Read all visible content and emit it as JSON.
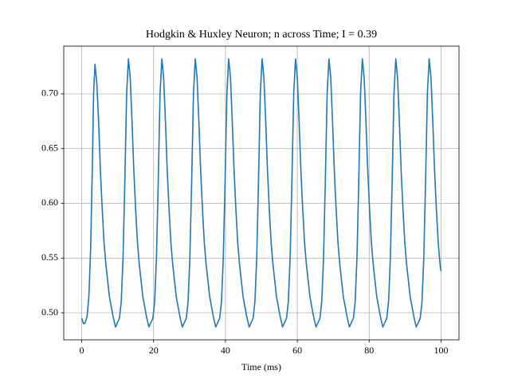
{
  "chart_data": {
    "type": "line",
    "title": "Hodgkin & Huxley Neuron; n across Time; I = 0.39",
    "xlabel": "Time (ms)",
    "xlim": [
      -5,
      105
    ],
    "xticks": [
      0,
      20,
      40,
      60,
      80,
      100
    ],
    "ylim": [
      0.4753,
      0.7436
    ],
    "yticks": [
      0.5,
      0.55,
      0.6,
      0.65,
      0.7
    ],
    "grid": true,
    "series": [
      {
        "color": "#1f77b4",
        "x": [
          0,
          0.5,
          1,
          1.5,
          2,
          2.5,
          3,
          3.3,
          3.7,
          4.2,
          4.7,
          5.2,
          5.7,
          6.2,
          6.7,
          7.7,
          8.7,
          9.4,
          10.5,
          11,
          11.5,
          12,
          12.5,
          13,
          13.5,
          14,
          14.5,
          15,
          15.5,
          16,
          17,
          18,
          18.7,
          19.8,
          20.3,
          20.8,
          21.3,
          21.8,
          22.3,
          22.8,
          23.3,
          23.8,
          24.3,
          24.8,
          25.3,
          26.3,
          27.3,
          28,
          29.1,
          29.6,
          30.1,
          30.6,
          31.1,
          31.6,
          32.1,
          32.6,
          33.1,
          33.6,
          34.1,
          34.6,
          35.6,
          36.6,
          37.3,
          38.4,
          38.9,
          39.4,
          39.9,
          40.4,
          40.9,
          41.4,
          41.9,
          42.4,
          42.9,
          43.4,
          43.9,
          44.9,
          45.9,
          46.6,
          47.7,
          48.2,
          48.7,
          49.2,
          49.7,
          50.2,
          50.7,
          51.2,
          51.7,
          52.2,
          52.7,
          53.2,
          54.2,
          55.2,
          55.9,
          57,
          57.5,
          58,
          58.5,
          59,
          59.5,
          60,
          60.5,
          61,
          61.5,
          62,
          62.5,
          63.5,
          64.5,
          65.2,
          66.3,
          66.8,
          67.3,
          67.8,
          68.3,
          68.8,
          69.3,
          69.8,
          70.3,
          70.8,
          71.3,
          71.8,
          72.8,
          73.8,
          74.5,
          75.6,
          76.1,
          76.6,
          77.1,
          77.6,
          78.1,
          78.6,
          79.1,
          79.6,
          80.1,
          80.6,
          81.1,
          82.1,
          83.1,
          83.8,
          84.9,
          85.4,
          85.9,
          86.4,
          86.9,
          87.4,
          87.9,
          88.4,
          88.9,
          89.4,
          89.9,
          90.4,
          91.4,
          92.4,
          93.1,
          94.2,
          94.7,
          95.2,
          95.7,
          96.2,
          96.7,
          97.2,
          97.7,
          98.2,
          98.7,
          99.2,
          99.7,
          100
        ],
        "values": [
          0.495,
          0.49,
          0.491,
          0.497,
          0.515,
          0.56,
          0.64,
          0.7,
          0.727,
          0.71,
          0.675,
          0.63,
          0.595,
          0.565,
          0.545,
          0.515,
          0.497,
          0.487,
          0.495,
          0.51,
          0.55,
          0.62,
          0.7,
          0.732,
          0.715,
          0.675,
          0.63,
          0.595,
          0.565,
          0.545,
          0.515,
          0.497,
          0.487,
          0.495,
          0.51,
          0.55,
          0.62,
          0.7,
          0.732,
          0.715,
          0.675,
          0.63,
          0.595,
          0.565,
          0.545,
          0.515,
          0.497,
          0.487,
          0.495,
          0.51,
          0.55,
          0.62,
          0.7,
          0.732,
          0.715,
          0.675,
          0.63,
          0.595,
          0.565,
          0.545,
          0.515,
          0.497,
          0.487,
          0.495,
          0.51,
          0.55,
          0.62,
          0.7,
          0.732,
          0.715,
          0.675,
          0.63,
          0.595,
          0.565,
          0.545,
          0.515,
          0.497,
          0.487,
          0.495,
          0.51,
          0.55,
          0.62,
          0.7,
          0.732,
          0.715,
          0.675,
          0.63,
          0.595,
          0.565,
          0.545,
          0.515,
          0.497,
          0.487,
          0.495,
          0.51,
          0.55,
          0.62,
          0.7,
          0.732,
          0.715,
          0.675,
          0.63,
          0.595,
          0.565,
          0.545,
          0.515,
          0.497,
          0.487,
          0.495,
          0.51,
          0.55,
          0.62,
          0.7,
          0.732,
          0.715,
          0.675,
          0.63,
          0.595,
          0.565,
          0.545,
          0.515,
          0.497,
          0.487,
          0.495,
          0.51,
          0.55,
          0.62,
          0.7,
          0.732,
          0.715,
          0.675,
          0.63,
          0.595,
          0.565,
          0.545,
          0.515,
          0.497,
          0.487,
          0.495,
          0.51,
          0.55,
          0.62,
          0.7,
          0.732,
          0.715,
          0.675,
          0.63,
          0.595,
          0.565,
          0.545,
          0.515,
          0.497,
          0.487,
          0.495,
          0.51,
          0.55,
          0.62,
          0.7,
          0.732,
          0.715,
          0.675,
          0.63,
          0.595,
          0.565,
          0.545,
          0.538
        ]
      }
    ]
  }
}
